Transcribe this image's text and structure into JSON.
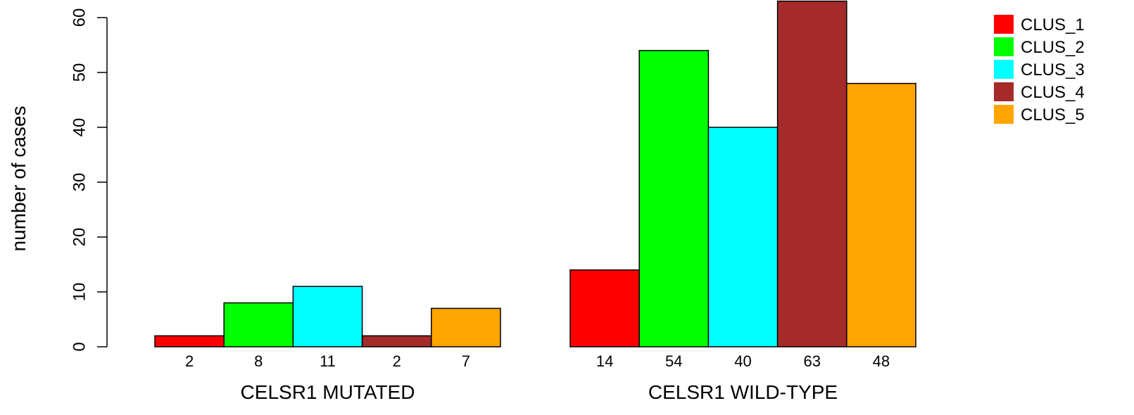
{
  "chart_data": {
    "type": "bar",
    "title": "",
    "xlabel": "",
    "ylabel": "number of cases",
    "ylim": [
      0,
      60
    ],
    "yticks": [
      0,
      10,
      20,
      30,
      40,
      50,
      60
    ],
    "grid": false,
    "legend_position": "top-right",
    "groups": [
      {
        "label": "CELSR1 MUTATED",
        "values": [
          2,
          8,
          11,
          2,
          7
        ]
      },
      {
        "label": "CELSR1 WILD-TYPE",
        "values": [
          14,
          54,
          40,
          63,
          48
        ]
      }
    ],
    "series": [
      {
        "name": "CLUS_1",
        "color": "#ff0000"
      },
      {
        "name": "CLUS_2",
        "color": "#00ff00"
      },
      {
        "name": "CLUS_3",
        "color": "#00ffff"
      },
      {
        "name": "CLUS_4",
        "color": "#a52a2a"
      },
      {
        "name": "CLUS_5",
        "color": "#ffa500"
      }
    ]
  }
}
